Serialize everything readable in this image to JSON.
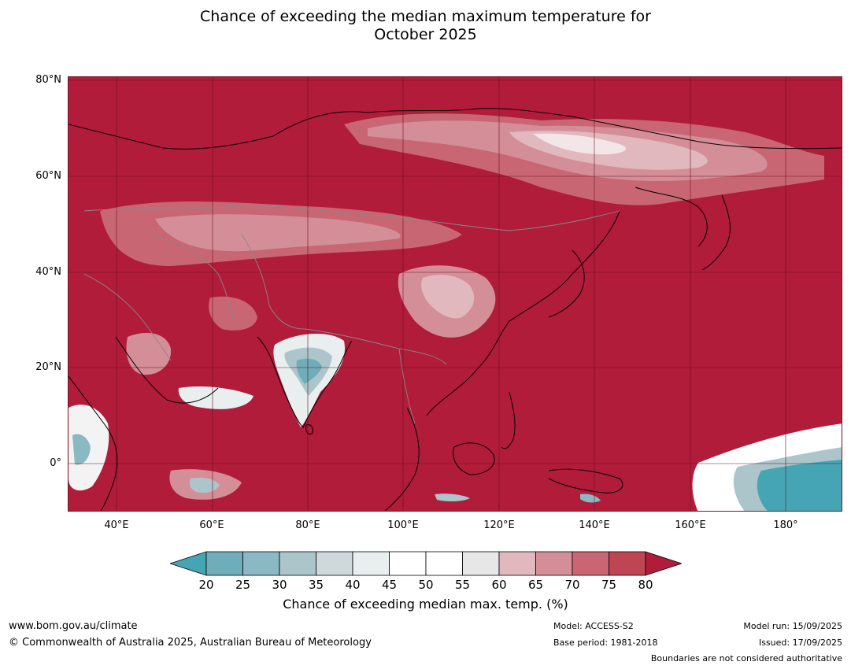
{
  "title": {
    "line1": "Chance of exceeding the median maximum temperature for",
    "line2": "October 2025"
  },
  "map": {
    "lat_ticks": [
      "80°N",
      "60°N",
      "40°N",
      "20°N",
      "0°"
    ],
    "lon_ticks": [
      "40°E",
      "60°E",
      "80°E",
      "100°E",
      "120°E",
      "140°E",
      "160°E",
      "180°"
    ],
    "extent": {
      "lon": [
        30,
        192
      ],
      "lat": [
        -10,
        81
      ]
    },
    "background_color": "#b01c3a"
  },
  "colorbar": {
    "ticks": [
      "20",
      "25",
      "30",
      "35",
      "40",
      "45",
      "50",
      "55",
      "60",
      "65",
      "70",
      "75",
      "80"
    ],
    "colors": [
      "#6eadb9",
      "#8ab8c3",
      "#acc5cb",
      "#cfd8da",
      "#e9eeef",
      "#ffffff",
      "#ffffff",
      "#e7e7e7",
      "#e0b8bd",
      "#d48e98",
      "#c86673",
      "#bf4553"
    ],
    "under_color": "#46a5b5",
    "over_color": "#b01c3a",
    "label": "Chance of exceeding median max. temp. (%)"
  },
  "footer": {
    "url": "www.bom.gov.au/climate",
    "copyright": "© Commonwealth of Australia 2025, Australian Bureau of Meteorology",
    "model": "Model: ACCESS-S2",
    "base_period": "Base period: 1981-2018",
    "model_run": "Model run: 15/09/2025",
    "issued": "Issued: 17/09/2025",
    "disclaimer": "Boundaries are not considered authoritative"
  }
}
